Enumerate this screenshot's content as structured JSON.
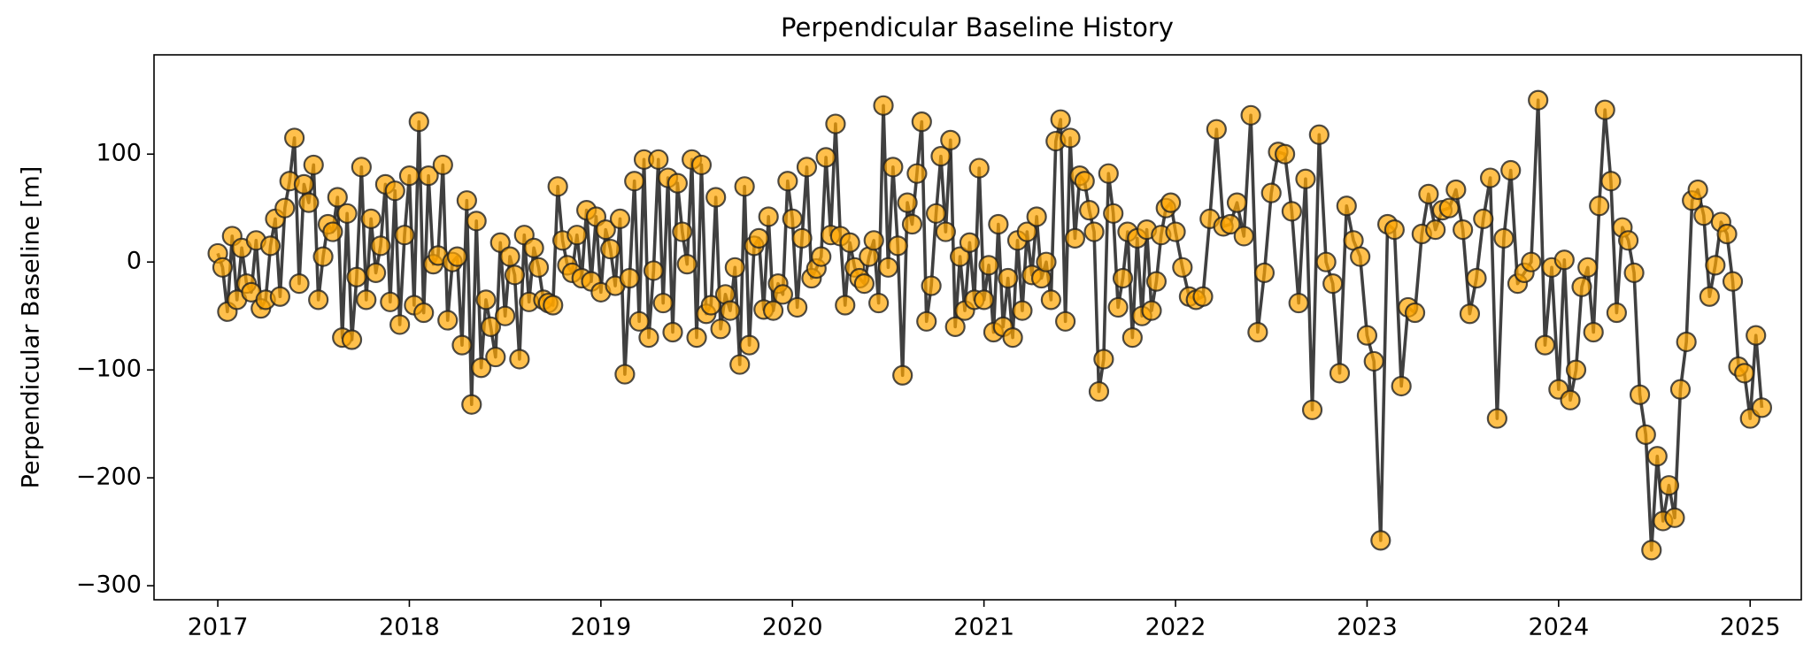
{
  "chart_data": {
    "type": "line",
    "title": "Perpendicular Baseline History",
    "y_label": "Perpendicular Baseline [m]",
    "marker_color": "#ffa500",
    "line_color": "#404040",
    "xlim": [
      2016.667,
      2025.267
    ],
    "xticks": [
      2017,
      2018,
      2019,
      2020,
      2021,
      2022,
      2023,
      2024,
      2025
    ],
    "ylim": [
      -313,
      192
    ],
    "yticks": [
      {
        "value": -300,
        "label": "−300"
      },
      {
        "value": -200,
        "label": "−200"
      },
      {
        "value": -100,
        "label": "−100"
      },
      0,
      100
    ],
    "x": [
      2017,
      2017.025,
      2017.05,
      2017.075,
      2017.1,
      2017.125,
      2017.15,
      2017.175,
      2017.2,
      2017.225,
      2017.25,
      2017.275,
      2017.3,
      2017.325,
      2017.35,
      2017.375,
      2017.4,
      2017.425,
      2017.45,
      2017.475,
      2017.5,
      2017.525,
      2017.55,
      2017.575,
      2017.6,
      2017.625,
      2017.65,
      2017.675,
      2017.7,
      2017.725,
      2017.75,
      2017.775,
      2017.8,
      2017.825,
      2017.85,
      2017.875,
      2017.9,
      2017.925,
      2017.95,
      2017.975,
      2018,
      2018.025,
      2018.05,
      2018.075,
      2018.1,
      2018.125,
      2018.15,
      2018.175,
      2018.2,
      2018.225,
      2018.25,
      2018.275,
      2018.3,
      2018.325,
      2018.35,
      2018.375,
      2018.4,
      2018.425,
      2018.45,
      2018.475,
      2018.5,
      2018.525,
      2018.55,
      2018.575,
      2018.6,
      2018.625,
      2018.65,
      2018.675,
      2018.7,
      2018.725,
      2018.75,
      2018.775,
      2018.8,
      2018.825,
      2018.85,
      2018.875,
      2018.9,
      2018.925,
      2018.95,
      2018.975,
      2019,
      2019.025,
      2019.05,
      2019.075,
      2019.1,
      2019.125,
      2019.15,
      2019.175,
      2019.2,
      2019.225,
      2019.25,
      2019.275,
      2019.3,
      2019.325,
      2019.35,
      2019.375,
      2019.4,
      2019.425,
      2019.45,
      2019.475,
      2019.5,
      2019.525,
      2019.55,
      2019.575,
      2019.6,
      2019.625,
      2019.65,
      2019.675,
      2019.7,
      2019.725,
      2019.75,
      2019.775,
      2019.8,
      2019.825,
      2019.85,
      2019.875,
      2019.9,
      2019.925,
      2019.95,
      2019.975,
      2020,
      2020.025,
      2020.05,
      2020.075,
      2020.1,
      2020.125,
      2020.15,
      2020.175,
      2020.2,
      2020.225,
      2020.25,
      2020.275,
      2020.3,
      2020.325,
      2020.35,
      2020.375,
      2020.4,
      2020.425,
      2020.45,
      2020.475,
      2020.5,
      2020.525,
      2020.55,
      2020.575,
      2020.6,
      2020.625,
      2020.65,
      2020.675,
      2020.7,
      2020.725,
      2020.75,
      2020.775,
      2020.8,
      2020.825,
      2020.85,
      2020.875,
      2020.9,
      2020.925,
      2020.95,
      2020.975,
      2021,
      2021.025,
      2021.05,
      2021.075,
      2021.1,
      2021.125,
      2021.15,
      2021.175,
      2021.2,
      2021.225,
      2021.25,
      2021.275,
      2021.3,
      2021.325,
      2021.35,
      2021.375,
      2021.4,
      2021.425,
      2021.45,
      2021.475,
      2021.5,
      2021.525,
      2021.55,
      2021.575,
      2021.6,
      2021.625,
      2021.65,
      2021.675,
      2021.7,
      2021.725,
      2021.75,
      2021.775,
      2021.8,
      2021.825,
      2021.85,
      2021.875,
      2021.9,
      2021.925,
      2021.95,
      2021.975,
      2022,
      2022.036,
      2022.071,
      2022.107,
      2022.143,
      2022.179,
      2022.214,
      2022.25,
      2022.286,
      2022.321,
      2022.357,
      2022.393,
      2022.429,
      2022.464,
      2022.5,
      2022.536,
      2022.571,
      2022.607,
      2022.643,
      2022.679,
      2022.714,
      2022.75,
      2022.786,
      2022.821,
      2022.857,
      2022.893,
      2022.929,
      2022.964,
      2023,
      2023.036,
      2023.071,
      2023.107,
      2023.143,
      2023.179,
      2023.214,
      2023.25,
      2023.286,
      2023.321,
      2023.357,
      2023.393,
      2023.429,
      2023.464,
      2023.5,
      2023.536,
      2023.571,
      2023.607,
      2023.643,
      2023.679,
      2023.714,
      2023.75,
      2023.786,
      2023.821,
      2023.857,
      2023.893,
      2023.929,
      2023.964,
      2024,
      2024.03,
      2024.061,
      2024.091,
      2024.121,
      2024.152,
      2024.182,
      2024.212,
      2024.242,
      2024.273,
      2024.303,
      2024.333,
      2024.364,
      2024.394,
      2024.424,
      2024.455,
      2024.485,
      2024.515,
      2024.545,
      2024.576,
      2024.606,
      2024.636,
      2024.667,
      2024.697,
      2024.727,
      2024.758,
      2024.788,
      2024.818,
      2024.848,
      2024.879,
      2024.909,
      2024.939,
      2024.97,
      2025,
      2025.03,
      2025.061
    ],
    "values": [
      8,
      -5,
      -46,
      24,
      -35,
      13,
      -20,
      -28,
      20,
      -43,
      -35,
      15,
      40,
      -32,
      50,
      75,
      115,
      -20,
      72,
      55,
      90,
      -35,
      5,
      35,
      28,
      60,
      -70,
      45,
      -72,
      -14,
      88,
      -35,
      40,
      -10,
      15,
      72,
      -37,
      66,
      -58,
      25,
      80,
      -40,
      130,
      -47,
      80,
      -2,
      6,
      90,
      -54,
      0,
      5,
      -77,
      57,
      -132,
      38,
      -98,
      -35,
      -60,
      -88,
      18,
      -50,
      5,
      -12,
      -90,
      25,
      -37,
      13,
      -5,
      -35,
      -38,
      -40,
      70,
      20,
      -3,
      -10,
      25,
      -15,
      48,
      -18,
      42,
      -28,
      30,
      12,
      -22,
      40,
      -104,
      -15,
      75,
      -55,
      95,
      -70,
      -8,
      95,
      -38,
      78,
      -65,
      73,
      28,
      -2,
      95,
      -70,
      90,
      -48,
      -40,
      60,
      -62,
      -30,
      -45,
      -5,
      -95,
      70,
      -77,
      15,
      22,
      -44,
      42,
      -45,
      -20,
      -30,
      75,
      40,
      -42,
      22,
      88,
      -15,
      -6,
      5,
      97,
      25,
      128,
      24,
      -40,
      18,
      -5,
      -15,
      -20,
      5,
      20,
      -38,
      145,
      -5,
      88,
      15,
      -105,
      55,
      35,
      82,
      130,
      -55,
      -22,
      45,
      98,
      28,
      113,
      -60,
      5,
      -45,
      18,
      -35,
      87,
      -35,
      -3,
      -65,
      35,
      -60,
      -15,
      -70,
      20,
      -45,
      28,
      -12,
      42,
      -15,
      0,
      -35,
      112,
      132,
      -55,
      115,
      22,
      80,
      75,
      48,
      28,
      -120,
      -90,
      82,
      45,
      -42,
      -15,
      28,
      -70,
      22,
      -50,
      30,
      -45,
      -18,
      25,
      50,
      55,
      28,
      -5,
      -32,
      -35,
      -32,
      40,
      123,
      33,
      35,
      55,
      24,
      136,
      -65,
      -10,
      64,
      102,
      100,
      47,
      -38,
      77,
      -137,
      118,
      0,
      -20,
      -103,
      52,
      20,
      5,
      -68,
      -92,
      -258,
      35,
      30,
      -115,
      -42,
      -47,
      26,
      63,
      30,
      48,
      50,
      67,
      30,
      -48,
      -15,
      40,
      78,
      -145,
      22,
      85,
      -20,
      -10,
      0,
      150,
      -77,
      -5,
      -118,
      2,
      -128,
      -100,
      -23,
      -5,
      -65,
      52,
      141,
      75,
      -47,
      32,
      20,
      -10,
      -123,
      -160,
      -267,
      -180,
      -240,
      -207,
      -237,
      -118,
      -74,
      57,
      67,
      43,
      -32,
      -3,
      37,
      26,
      -18,
      -97,
      -103,
      -145,
      -68,
      -135
    ]
  }
}
